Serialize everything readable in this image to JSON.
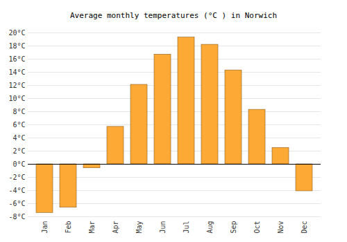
{
  "chart_data": {
    "type": "bar",
    "title": "Average monthly temperatures (°C ) in Norwich",
    "categories": [
      "Jan",
      "Feb",
      "Mar",
      "Apr",
      "May",
      "Jun",
      "Jul",
      "Aug",
      "Sep",
      "Oct",
      "Nov",
      "Dec"
    ],
    "values": [
      -7.4,
      -6.6,
      -0.6,
      5.7,
      12.1,
      16.7,
      19.3,
      18.2,
      14.3,
      8.3,
      2.5,
      -4.1
    ],
    "color": "#fca935",
    "ylim": [
      -8,
      20
    ],
    "yticks": [
      {
        "value": -8,
        "label": "-8°C"
      },
      {
        "value": -6,
        "label": "-6°C"
      },
      {
        "value": -4,
        "label": "-4°C"
      },
      {
        "value": -2,
        "label": "-2°C"
      },
      {
        "value": 0,
        "label": "0°C"
      },
      {
        "value": 2,
        "label": "2°C"
      },
      {
        "value": 4,
        "label": "4°C"
      },
      {
        "value": 6,
        "label": "6°C"
      },
      {
        "value": 8,
        "label": "8°C"
      },
      {
        "value": 10,
        "label": "10°C"
      },
      {
        "value": 12,
        "label": "12°C"
      },
      {
        "value": 14,
        "label": "14°C"
      },
      {
        "value": 16,
        "label": "16°C"
      },
      {
        "value": 18,
        "label": "18°C"
      },
      {
        "value": 20,
        "label": "20°C"
      }
    ],
    "grid": true
  }
}
